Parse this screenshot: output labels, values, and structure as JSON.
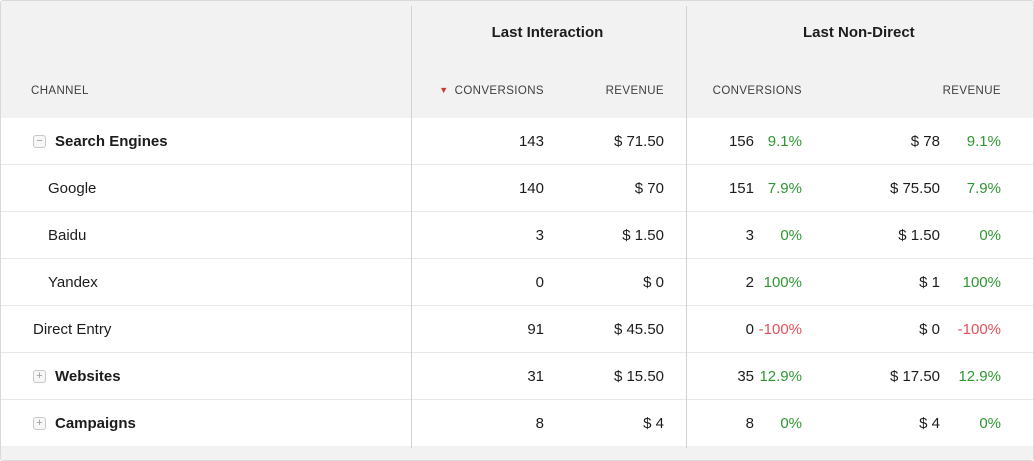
{
  "table": {
    "channel_header": "CHANNEL",
    "sort_indicator": "▼",
    "model_groups": {
      "last_interaction": {
        "label": "Last Interaction",
        "conversions_label": "CONVERSIONS",
        "revenue_label": "REVENUE"
      },
      "last_non_direct": {
        "label": "Last Non-Direct",
        "conversions_label": "CONVERSIONS",
        "revenue_label": "REVENUE"
      }
    },
    "toggle_glyphs": {
      "minus": "−",
      "plus": "+"
    },
    "rows": [
      {
        "channel": "Search Engines",
        "level": "group",
        "icon": "minus",
        "li_conv": "143",
        "li_rev": "$ 71.50",
        "lnd_conv": "156",
        "lnd_conv_pct": "9.1%",
        "lnd_rev": "$ 78",
        "lnd_rev_pct": "9.1%",
        "trend": "up"
      },
      {
        "channel": "Google",
        "level": "child",
        "icon": null,
        "li_conv": "140",
        "li_rev": "$ 70",
        "lnd_conv": "151",
        "lnd_conv_pct": "7.9%",
        "lnd_rev": "$ 75.50",
        "lnd_rev_pct": "7.9%",
        "trend": "up"
      },
      {
        "channel": "Baidu",
        "level": "child",
        "icon": null,
        "li_conv": "3",
        "li_rev": "$ 1.50",
        "lnd_conv": "3",
        "lnd_conv_pct": "0%",
        "lnd_rev": "$ 1.50",
        "lnd_rev_pct": "0%",
        "trend": "up"
      },
      {
        "channel": "Yandex",
        "level": "child",
        "icon": null,
        "li_conv": "0",
        "li_rev": "$ 0",
        "lnd_conv": "2",
        "lnd_conv_pct": "100%",
        "lnd_rev": "$ 1",
        "lnd_rev_pct": "100%",
        "trend": "up"
      },
      {
        "channel": "Direct Entry",
        "level": "top",
        "icon": null,
        "li_conv": "91",
        "li_rev": "$ 45.50",
        "lnd_conv": "0",
        "lnd_conv_pct": "-100%",
        "lnd_rev": "$ 0",
        "lnd_rev_pct": "-100%",
        "trend": "down"
      },
      {
        "channel": "Websites",
        "level": "group",
        "icon": "plus",
        "li_conv": "31",
        "li_rev": "$ 15.50",
        "lnd_conv": "35",
        "lnd_conv_pct": "12.9%",
        "lnd_rev": "$ 17.50",
        "lnd_rev_pct": "12.9%",
        "trend": "up"
      },
      {
        "channel": "Campaigns",
        "level": "group",
        "icon": "plus",
        "li_conv": "8",
        "li_rev": "$ 4",
        "lnd_conv": "8",
        "lnd_conv_pct": "0%",
        "lnd_rev": "$ 4",
        "lnd_rev_pct": "0%",
        "trend": "up"
      }
    ]
  },
  "colors": {
    "positive_pct": "#2f9632",
    "negative_pct": "#e25158",
    "sort_triangle": "#d0342c",
    "header_background": "#f2f2f3"
  }
}
